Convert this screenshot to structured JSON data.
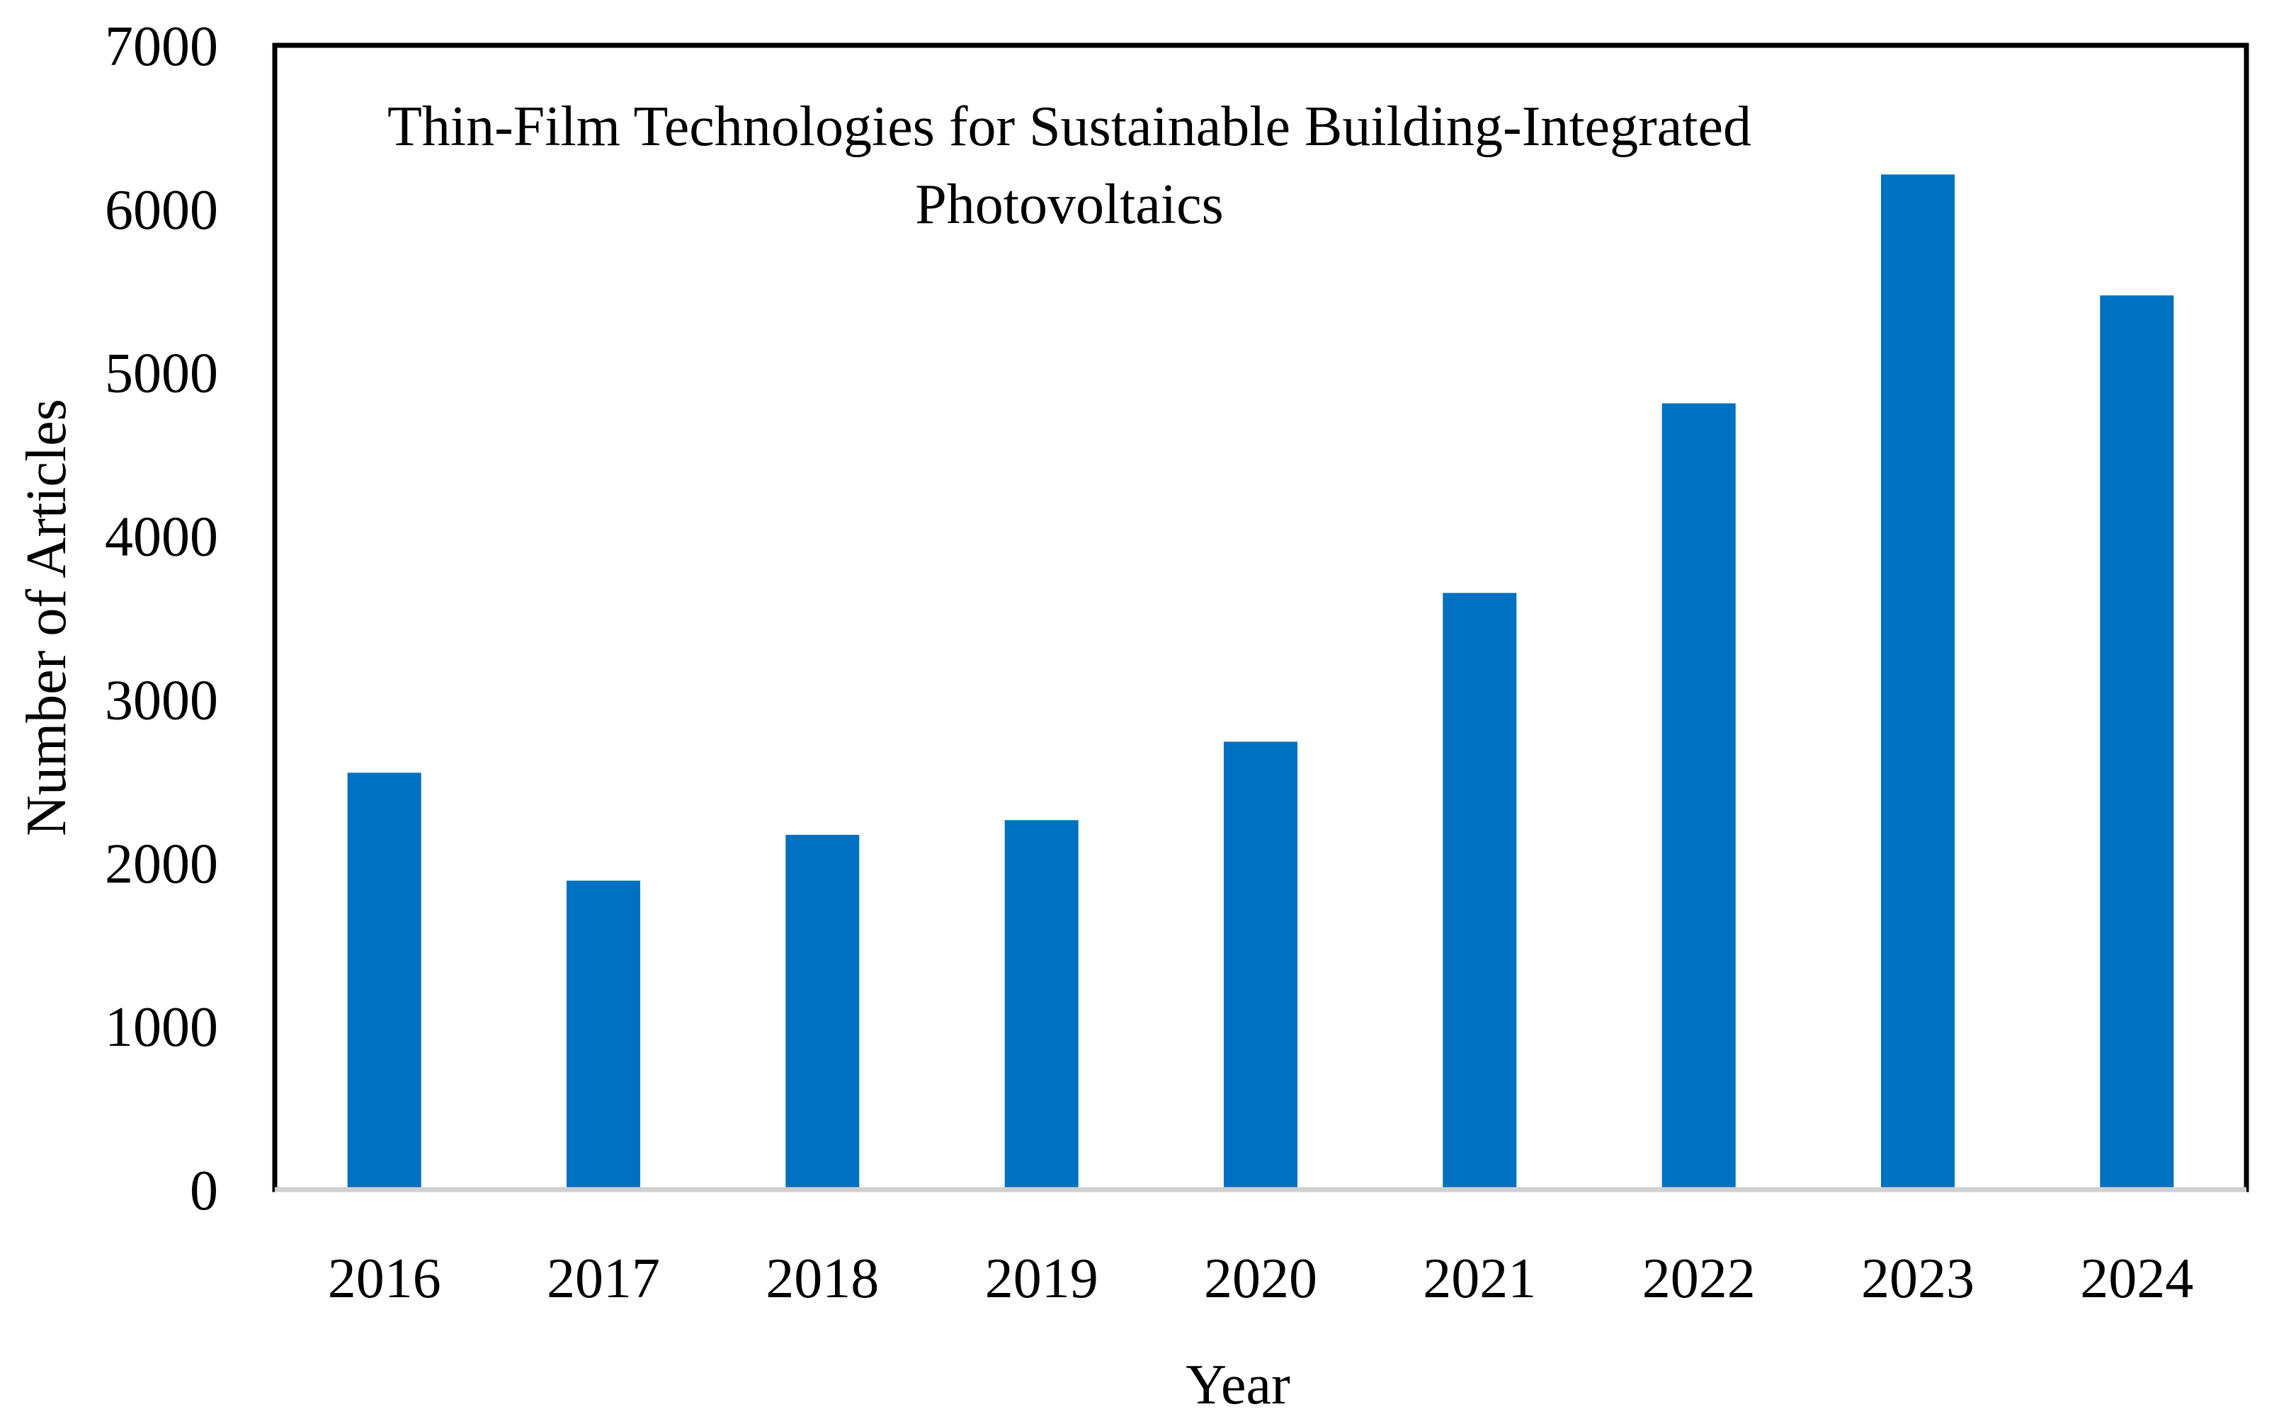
{
  "chart_data": {
    "type": "bar",
    "title_lines": [
      "Thin-Film Technologies for Sustainable Building-Integrated",
      "Photovoltaics"
    ],
    "xlabel": "Year",
    "ylabel": "Number of Articles",
    "categories": [
      "2016",
      "2017",
      "2018",
      "2019",
      "2020",
      "2021",
      "2022",
      "2023",
      "2024"
    ],
    "values": [
      2550,
      1890,
      2170,
      2260,
      2740,
      3650,
      4810,
      6210,
      5470
    ],
    "ylim": [
      0,
      7000
    ],
    "yticks": [
      0,
      1000,
      2000,
      3000,
      4000,
      5000,
      6000,
      7000
    ],
    "ytick_labels": [
      "0",
      "1000",
      "2000",
      "3000",
      "4000",
      "5000",
      "6000",
      "7000"
    ],
    "grid": false,
    "legend": "none",
    "bar_color": "#0070C0"
  }
}
